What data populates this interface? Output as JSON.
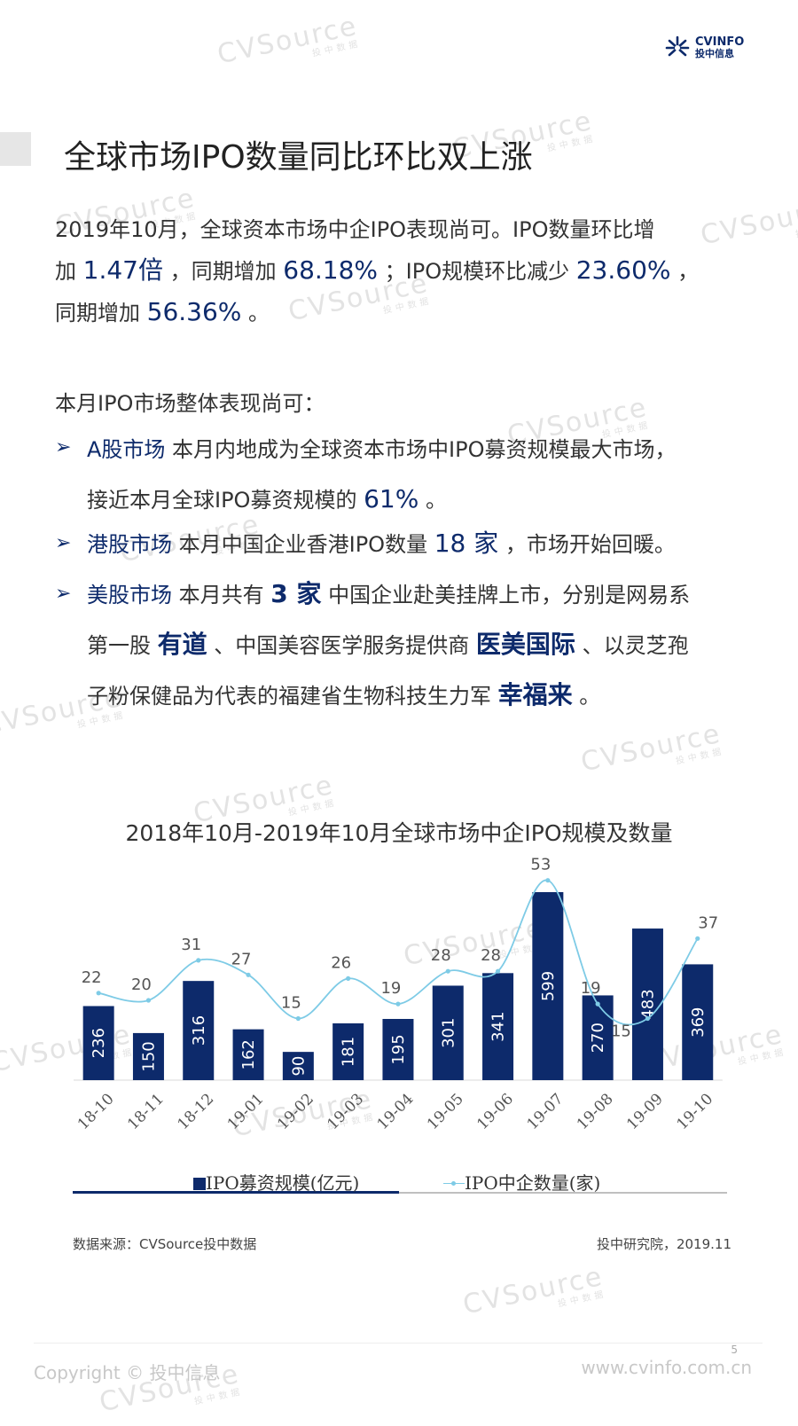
{
  "brand": {
    "logo_line1": "CVINFO",
    "logo_line2": "投中信息"
  },
  "title": "全球市场IPO数量同比环比双上涨",
  "summary": {
    "l1": "2019年10月，全球资本市场中企IPO表现尚可。IPO数量环比增",
    "l2a": "加 ",
    "v1": "1.47倍",
    "l2b": " ，同期增加 ",
    "v2": "68.18%",
    "l2c": " ；IPO规模环比减少 ",
    "v3": "23.60%",
    "l2d": " ，",
    "l3a": "同期增加 ",
    "v4": "56.36%",
    "l3b": " 。"
  },
  "intro": "本月IPO市场整体表现尚可：",
  "bullets": {
    "b1": {
      "head": "A股市场",
      "t1": "  本月内地成为全球资本市场中IPO募资规模最大市场，",
      "t2": "接近本月全球IPO募资规模的 ",
      "v": "61%",
      "t3": " 。"
    },
    "b2": {
      "head": "港股市场",
      "t1": " 本月中国企业香港IPO数量 ",
      "v": " 18 家",
      "t2": " ，市场开始回暖。"
    },
    "b3": {
      "head": "美股市场",
      "t1": "  本月共有 ",
      "v": " 3 家",
      "t2": "  中国企业赴美挂牌上市，分别是网易系",
      "t3": "第一股 ",
      "v2": " 有道",
      "t4": " 、中国美容医学服务提供商 ",
      "v3": " 医美国际",
      "t5": " 、以灵芝孢",
      "t6": "子粉保健品为代表的福建省生物科技生力军 ",
      "v4": "幸福来",
      "t7": " 。"
    }
  },
  "chart_data": {
    "type": "bar",
    "title": "2018年10月-2019年10月全球市场中企IPO规模及数量",
    "categories": [
      "18-10",
      "18-11",
      "18-12",
      "19-01",
      "19-02",
      "19-03",
      "19-04",
      "19-05",
      "19-06",
      "19-07",
      "19-08",
      "19-09",
      "19-10"
    ],
    "series": [
      {
        "name": "IPO募资规模(亿元)",
        "type": "bar",
        "values": [
          236,
          150,
          316,
          162,
          90,
          181,
          195,
          301,
          341,
          599,
          270,
          483,
          369
        ]
      },
      {
        "name": "IPO中企数量(家)",
        "type": "line",
        "smooth": true,
        "values": [
          22,
          20,
          31,
          27,
          15,
          26,
          19,
          28,
          28,
          53,
          19,
          15,
          37
        ]
      }
    ],
    "legend": "bottom",
    "grid": false,
    "colors": {
      "bar": "#0d2a6b",
      "line": "#7ecbe6",
      "bar_label": "#ffffff",
      "line_label": "#555555"
    }
  },
  "source": "数据来源：CVSource投中数据",
  "credit": "投中研究院，2019.11",
  "footer": {
    "copyright": "Copyright © 投中信息",
    "website": "www.cvinfo.com.cn",
    "page": "5"
  },
  "watermark": {
    "text": "CVSource",
    "sub": "投中数据"
  }
}
